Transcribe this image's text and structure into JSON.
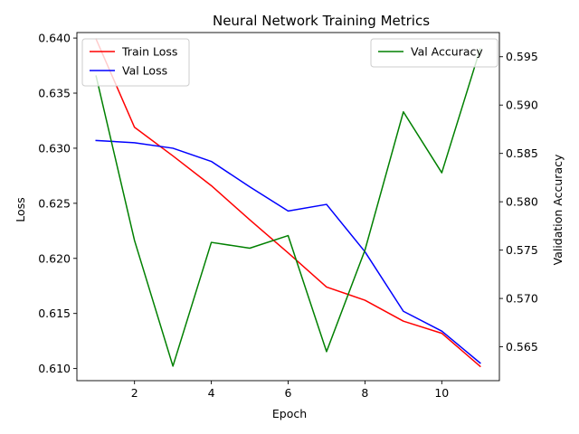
{
  "chart_data": {
    "type": "line",
    "title": "Neural Network Training Metrics",
    "xlabel": "Epoch",
    "ylabel": "Loss",
    "y2label": "Validation Accuracy",
    "x": [
      1,
      2,
      3,
      4,
      5,
      6,
      7,
      8,
      9,
      10,
      11
    ],
    "xlim": [
      0.5,
      11.5
    ],
    "xticks": [
      2,
      4,
      6,
      8,
      10
    ],
    "ylim": [
      0.6089,
      0.6405
    ],
    "yticks": [
      0.61,
      0.615,
      0.62,
      0.625,
      0.63,
      0.635,
      0.64
    ],
    "ytick_labels": [
      "0.610",
      "0.615",
      "0.620",
      "0.625",
      "0.630",
      "0.635",
      "0.640"
    ],
    "y2lim": [
      0.5615,
      0.5975
    ],
    "y2ticks": [
      0.565,
      0.57,
      0.575,
      0.58,
      0.585,
      0.59,
      0.595
    ],
    "y2tick_labels": [
      "0.565",
      "0.570",
      "0.575",
      "0.580",
      "0.585",
      "0.590",
      "0.595"
    ],
    "series": [
      {
        "name": "Train Loss",
        "axis": "left",
        "color": "#ff0000",
        "values": [
          0.6399,
          0.6319,
          0.6293,
          0.6266,
          0.6235,
          0.6205,
          0.6174,
          0.6162,
          0.6143,
          0.6132,
          0.6102
        ]
      },
      {
        "name": "Val Loss",
        "axis": "left",
        "color": "#0000ff",
        "values": [
          0.6307,
          0.6305,
          0.63,
          0.6288,
          0.6265,
          0.6243,
          0.6249,
          0.6206,
          0.6152,
          0.6134,
          0.6105
        ]
      },
      {
        "name": "Val Accuracy",
        "axis": "right",
        "color": "#008000",
        "values": [
          0.593,
          0.576,
          0.563,
          0.5758,
          0.5752,
          0.5765,
          0.5645,
          0.575,
          0.5893,
          0.583,
          0.5958
        ]
      }
    ],
    "legend_left": "upper-left",
    "legend_right": "upper-right",
    "grid": false
  }
}
